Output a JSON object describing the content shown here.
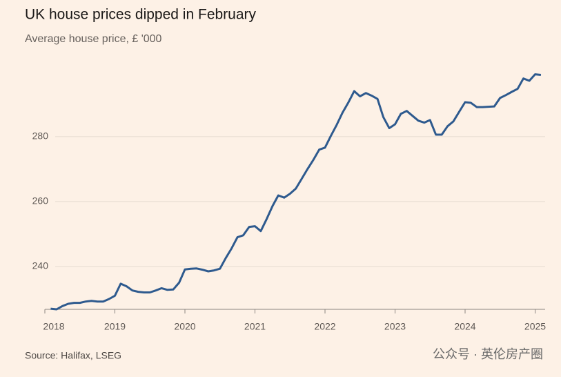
{
  "chart_data": {
    "type": "line",
    "title": "UK house prices dipped in February",
    "subtitle": "Average house price, £ '000",
    "source": "Source: Halifax, LSEG",
    "watermark": "公众号 · 英伦房产圈",
    "x": [
      2018.083,
      2018.167,
      2018.25,
      2018.333,
      2018.417,
      2018.5,
      2018.583,
      2018.667,
      2018.75,
      2018.833,
      2018.917,
      2019.0,
      2019.083,
      2019.167,
      2019.25,
      2019.333,
      2019.417,
      2019.5,
      2019.583,
      2019.667,
      2019.75,
      2019.833,
      2019.917,
      2020.0,
      2020.083,
      2020.167,
      2020.25,
      2020.333,
      2020.417,
      2020.5,
      2020.583,
      2020.667,
      2020.75,
      2020.833,
      2020.917,
      2021.0,
      2021.083,
      2021.167,
      2021.25,
      2021.333,
      2021.417,
      2021.5,
      2021.583,
      2021.667,
      2021.75,
      2021.833,
      2021.917,
      2022.0,
      2022.083,
      2022.167,
      2022.25,
      2022.333,
      2022.417,
      2022.5,
      2022.583,
      2022.667,
      2022.75,
      2022.833,
      2022.917,
      2023.0,
      2023.083,
      2023.167,
      2023.25,
      2023.333,
      2023.417,
      2023.5,
      2023.583,
      2023.667,
      2023.75,
      2023.833,
      2023.917,
      2024.0,
      2024.083,
      2024.167,
      2024.25,
      2024.333,
      2024.417,
      2024.5,
      2024.583,
      2024.667,
      2024.75,
      2024.833,
      2024.917,
      2025.0,
      2025.083
    ],
    "series": [
      {
        "name": "Average house price",
        "color": "#2e5a8e",
        "values": [
          227.0,
          226.8,
          227.8,
          228.5,
          228.8,
          228.8,
          229.2,
          229.4,
          229.2,
          229.2,
          230.0,
          231.0,
          234.7,
          233.9,
          232.6,
          232.2,
          232.0,
          232.0,
          232.6,
          233.3,
          232.8,
          232.9,
          235.0,
          239.1,
          239.3,
          239.4,
          239.0,
          238.5,
          238.8,
          239.3,
          242.6,
          245.6,
          249.0,
          249.6,
          252.2,
          252.4,
          250.9,
          254.6,
          258.6,
          261.9,
          261.2,
          262.4,
          264.0,
          267.0,
          270.0,
          272.8,
          276.0,
          276.6,
          280.2,
          283.6,
          287.4,
          290.5,
          294.0,
          292.4,
          293.4,
          292.6,
          291.6,
          286.0,
          282.6,
          283.8,
          287.0,
          287.9,
          286.4,
          284.9,
          284.3,
          285.1,
          280.6,
          280.6,
          283.2,
          284.7,
          287.7,
          290.6,
          290.4,
          289.1,
          289.1,
          289.2,
          289.3,
          291.9,
          292.8,
          293.8,
          294.7,
          297.9,
          297.2,
          299.2,
          299.0
        ]
      }
    ],
    "xlim": [
      2018,
      2025.143
    ],
    "xticks": [
      2018,
      2019,
      2020,
      2021,
      2022,
      2023,
      2024,
      2025
    ],
    "ylim": [
      226.8,
      304
    ],
    "yticks": [
      240,
      260,
      280
    ],
    "grid": true
  }
}
